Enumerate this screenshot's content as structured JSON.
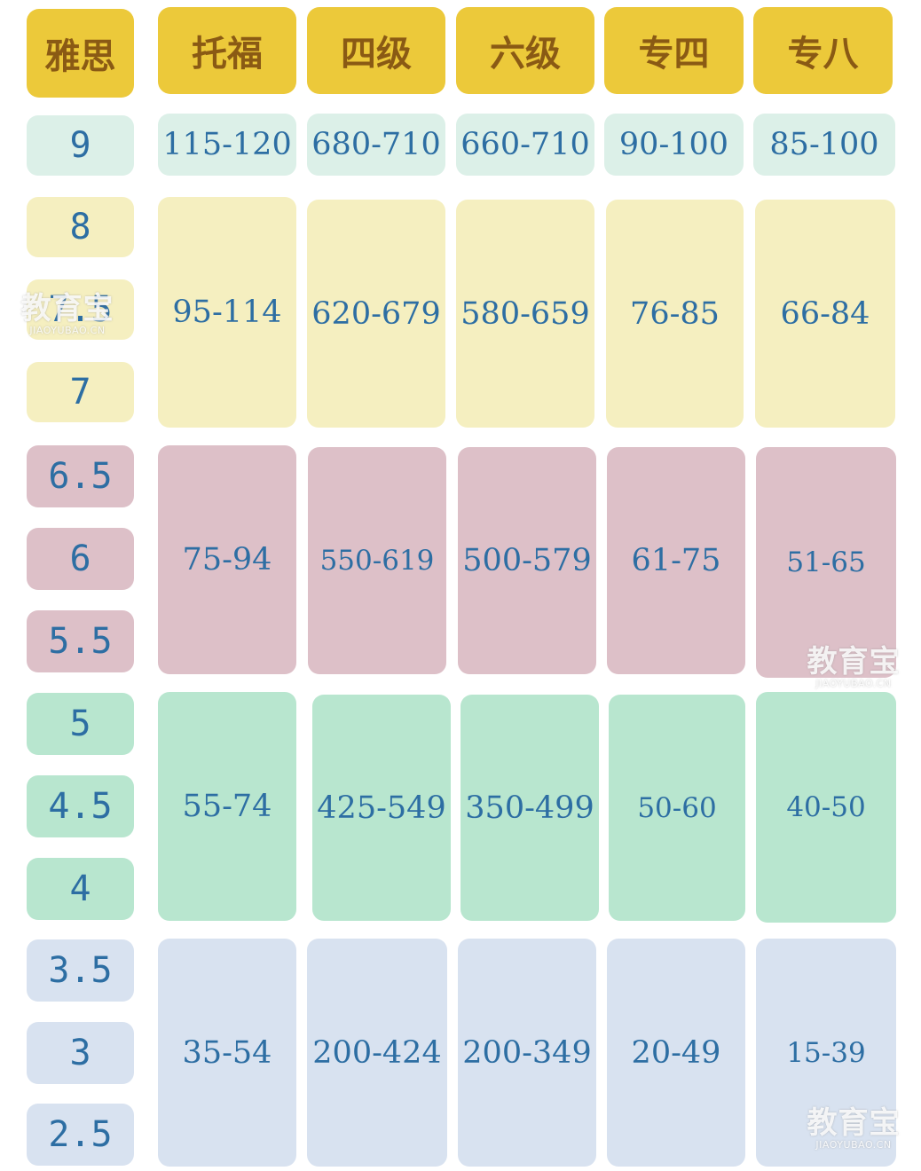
{
  "colors": {
    "header": "#ecc93a",
    "band_9": "#dcf0e8",
    "band_7": "#f5efc0",
    "band_5": "#ddc0c8",
    "band_4": "#b8e6cf",
    "band_2": "#d8e2f0",
    "text": "#2d6ea3",
    "header_text": "#8a5a14"
  },
  "headers": [
    "雅思",
    "托福",
    "四级",
    "六级",
    "专四",
    "专八"
  ],
  "ielts_scores": [
    "9",
    "8",
    "7.5",
    "7",
    "6.5",
    "6",
    "5.5",
    "5",
    "4.5",
    "4",
    "3.5",
    "3",
    "2.5"
  ],
  "bands": [
    {
      "toefl": "115-120",
      "cet4": "680-710",
      "cet6": "660-710",
      "tem4": "90-100",
      "tem8": "85-100"
    },
    {
      "toefl": "95-114",
      "cet4": "620-679",
      "cet6": "580-659",
      "tem4": "76-85",
      "tem8": "66-84"
    },
    {
      "toefl": "75-94",
      "cet4": "550-619",
      "cet6": "500-579",
      "tem4": "61-75",
      "tem8": "51-65"
    },
    {
      "toefl": "55-74",
      "cet4": "425-549",
      "cet6": "350-499",
      "tem4": "50-60",
      "tem8": "40-50"
    },
    {
      "toefl": "35-54",
      "cet4": "200-424",
      "cet6": "200-349",
      "tem4": "20-49",
      "tem8": "15-39"
    }
  ],
  "watermark": {
    "brand": "教育宝",
    "domain": "JIAOYUBAO.CN"
  }
}
